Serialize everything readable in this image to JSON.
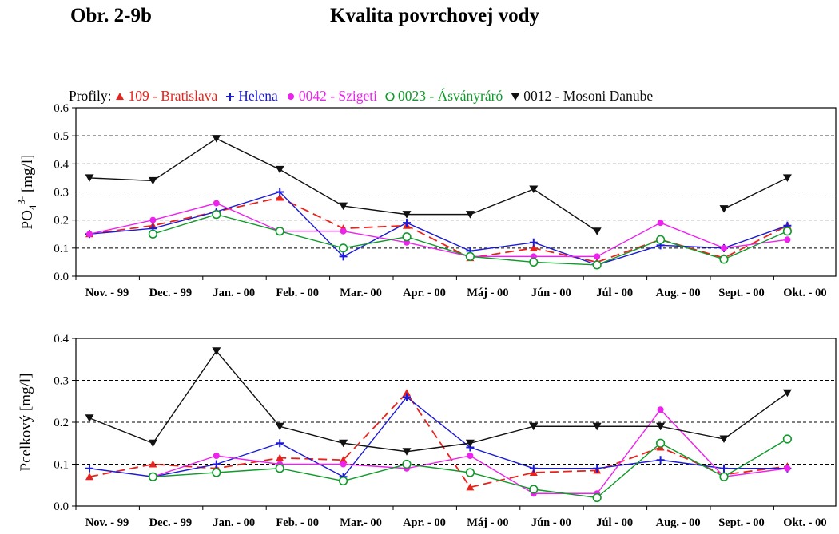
{
  "figure": {
    "label": "Obr. 2-9b",
    "title": "Kvalita povrchovej vody"
  },
  "legend": {
    "prefix": "Profily:",
    "position": "top-left, above upper chart"
  },
  "chart_data": [
    {
      "type": "line",
      "title": "",
      "xlabel": "",
      "ylabel_base": "PO",
      "ylabel_sub": "4",
      "ylabel_sup": "3-",
      "ylabel_unit": " [mg/l]",
      "ylim": [
        0,
        0.6
      ],
      "yticks": [
        "0.0",
        "0.1",
        "0.2",
        "0.3",
        "0.4",
        "0.5",
        "0.6"
      ],
      "grid": "horizontal dashed",
      "categories": [
        "Nov. - 99",
        "Dec. - 99",
        "Jan. - 00",
        "Feb. - 00",
        "Mar.- 00",
        "Apr. - 00",
        "Máj - 00",
        "Jún - 00",
        "Júl - 00",
        "Aug. - 00",
        "Sept. - 00",
        "Okt. - 00"
      ],
      "series": [
        {
          "name": "109 - Bratislava",
          "color": "#e8221c",
          "marker": "triangle-up",
          "dash": true,
          "values": [
            0.15,
            0.18,
            0.23,
            0.28,
            0.17,
            0.18,
            0.065,
            0.1,
            0.05,
            0.13,
            0.065,
            0.18
          ]
        },
        {
          "name": "Helena",
          "color": "#1a1ad8",
          "marker": "plus",
          "dash": false,
          "values": [
            0.15,
            0.17,
            0.23,
            0.3,
            0.07,
            0.19,
            0.09,
            0.12,
            0.04,
            0.11,
            0.1,
            0.18
          ]
        },
        {
          "name": "0042 - Szigeti",
          "color": "#ee22ee",
          "marker": "dot",
          "dash": false,
          "values": [
            0.15,
            0.2,
            0.26,
            0.16,
            0.16,
            0.12,
            0.07,
            0.07,
            0.07,
            0.19,
            0.1,
            0.13
          ]
        },
        {
          "name": "0023 - Ásványráró",
          "color": "#0f9a2a",
          "marker": "circle",
          "dash": false,
          "values": [
            null,
            0.15,
            0.22,
            0.16,
            0.1,
            0.14,
            0.07,
            0.05,
            0.04,
            0.13,
            0.06,
            0.16
          ]
        },
        {
          "name": "0012 - Mosoni Danube",
          "color": "#111111",
          "marker": "triangle-down",
          "dash": false,
          "values": [
            0.35,
            0.34,
            0.49,
            0.38,
            0.25,
            0.22,
            0.22,
            0.31,
            0.16,
            null,
            0.24,
            0.35
          ]
        }
      ]
    },
    {
      "type": "line",
      "title": "",
      "xlabel": "",
      "ylabel_base": "Pcelkový",
      "ylabel_sub": "",
      "ylabel_sup": "",
      "ylabel_unit": " [mg/l]",
      "ylim": [
        0,
        0.4
      ],
      "yticks": [
        "0.0",
        "0.1",
        "0.2",
        "0.3",
        "0.4"
      ],
      "grid": "horizontal dashed",
      "categories": [
        "Nov. - 99",
        "Dec. - 99",
        "Jan. - 00",
        "Feb. - 00",
        "Mar.- 00",
        "Apr. - 00",
        "Máj - 00",
        "Jún - 00",
        "Júl - 00",
        "Aug. - 00",
        "Sept. - 00",
        "Okt. - 00"
      ],
      "series": [
        {
          "name": "109 - Bratislava",
          "color": "#e8221c",
          "marker": "triangle-up",
          "dash": true,
          "values": [
            0.07,
            0.1,
            0.09,
            0.115,
            0.11,
            0.27,
            0.045,
            0.08,
            0.085,
            0.14,
            0.075,
            0.095
          ]
        },
        {
          "name": "Helena",
          "color": "#1a1ad8",
          "marker": "plus",
          "dash": false,
          "values": [
            0.09,
            0.07,
            0.1,
            0.15,
            0.07,
            0.26,
            0.14,
            0.09,
            0.09,
            0.11,
            0.09,
            0.09
          ]
        },
        {
          "name": "0042 - Szigeti",
          "color": "#ee22ee",
          "marker": "dot",
          "dash": false,
          "values": [
            null,
            0.07,
            0.12,
            0.1,
            0.1,
            0.09,
            0.12,
            0.03,
            0.03,
            0.23,
            0.07,
            0.09
          ]
        },
        {
          "name": "0023 - Ásványráró",
          "color": "#0f9a2a",
          "marker": "circle",
          "dash": false,
          "values": [
            null,
            0.07,
            0.08,
            0.09,
            0.06,
            0.1,
            0.08,
            0.04,
            0.02,
            0.15,
            0.07,
            0.16
          ]
        },
        {
          "name": "0012 - Mosoni Danube",
          "color": "#111111",
          "marker": "triangle-down",
          "dash": false,
          "values": [
            0.21,
            0.15,
            0.37,
            0.19,
            0.15,
            0.13,
            0.15,
            0.19,
            0.19,
            0.19,
            0.16,
            0.27
          ]
        }
      ]
    }
  ]
}
